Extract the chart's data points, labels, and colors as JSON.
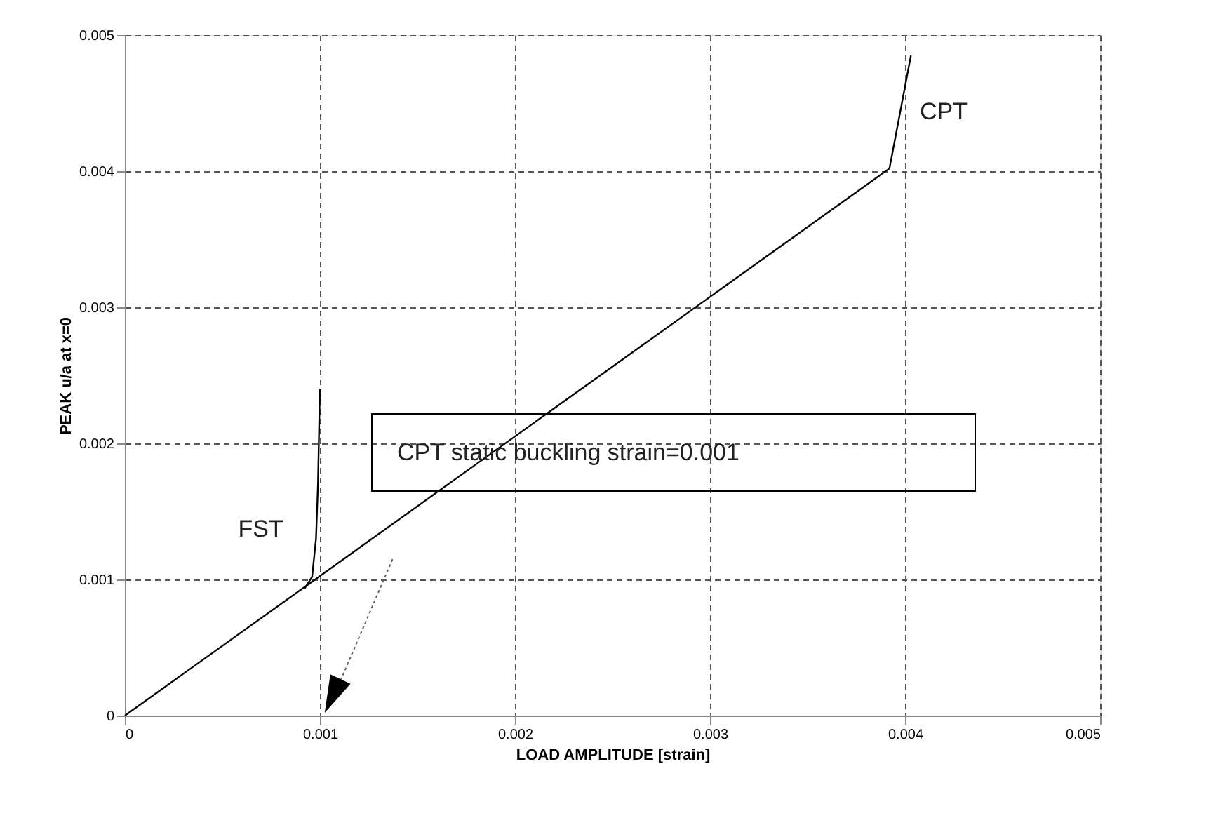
{
  "chart_data": {
    "type": "line",
    "xlabel": "LOAD AMPLITUDE [strain]",
    "ylabel": "PEAK u/a at x=0",
    "series": [
      {
        "color": "#000000",
        "x": [
          0,
          0.00392
        ],
        "values": [
          0,
          0.00402
        ]
      },
      {
        "name": "FST",
        "color": "#000000",
        "x": [
          0.00092,
          0.00096,
          0.00098,
          0.00099,
          0.001
        ],
        "values": [
          0.00093,
          0.00102,
          0.0013,
          0.0017,
          0.0024
        ]
      },
      {
        "name": "CPT",
        "color": "#000000",
        "x": [
          0.00392,
          0.00403
        ],
        "values": [
          0.00402,
          0.00485
        ]
      }
    ],
    "xlim": [
      0,
      0.005
    ],
    "ylim": [
      0,
      0.005
    ],
    "xticks": [
      0,
      0.001,
      0.002,
      0.003,
      0.004,
      0.005
    ],
    "yticks": [
      0,
      0.001,
      0.002,
      0.003,
      0.004,
      0.005
    ],
    "grid": true,
    "marker": "none",
    "line_style": "solid",
    "annotations": [
      "CPT static buckling strain=0.001"
    ]
  }
}
